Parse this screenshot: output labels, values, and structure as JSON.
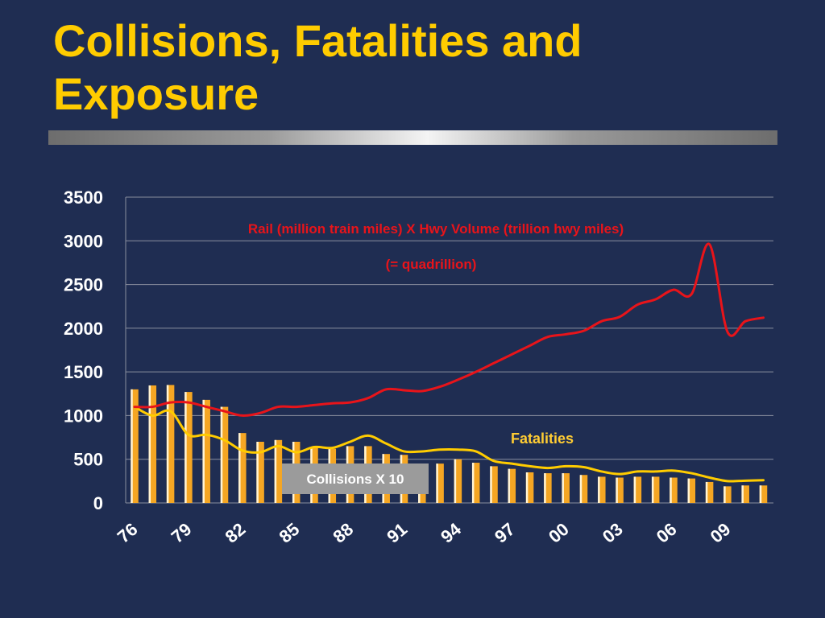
{
  "slide": {
    "title": "Collisions, Fatalities and Exposure"
  },
  "chart_data": {
    "type": "bar",
    "xlabel": "",
    "ylabel": "",
    "ylim": [
      0,
      3500
    ],
    "yticks": [
      0,
      500,
      1000,
      1500,
      2000,
      2500,
      3000,
      3500
    ],
    "grid": true,
    "categories": [
      "76",
      "77",
      "78",
      "79",
      "80",
      "81",
      "82",
      "83",
      "84",
      "85",
      "86",
      "87",
      "88",
      "89",
      "90",
      "91",
      "92",
      "93",
      "94",
      "95",
      "96",
      "97",
      "98",
      "99",
      "00",
      "01",
      "02",
      "03",
      "04",
      "05",
      "06",
      "07",
      "08",
      "09",
      "10",
      "11"
    ],
    "x_tick_labels": [
      "76",
      "79",
      "82",
      "85",
      "88",
      "91",
      "94",
      "97",
      "00",
      "03",
      "06",
      "09"
    ],
    "series": [
      {
        "name": "Collisions X 10",
        "kind": "bar",
        "color": "#f5a623",
        "values": [
          1300,
          1345,
          1350,
          1270,
          1180,
          1100,
          800,
          700,
          720,
          700,
          640,
          620,
          650,
          650,
          560,
          550,
          450,
          450,
          500,
          460,
          420,
          390,
          350,
          340,
          340,
          320,
          300,
          290,
          300,
          300,
          290,
          280,
          240,
          190,
          200,
          200
        ]
      },
      {
        "name": "Fatalities",
        "kind": "line",
        "color": "#ffcc00",
        "values": [
          1100,
          1000,
          1050,
          780,
          780,
          720,
          600,
          580,
          650,
          580,
          640,
          630,
          700,
          770,
          680,
          590,
          590,
          610,
          610,
          590,
          480,
          450,
          420,
          400,
          420,
          410,
          360,
          330,
          360,
          360,
          370,
          340,
          290,
          250,
          255,
          260
        ]
      },
      {
        "name": "Rail (million train miles) X Hwy Volume (trillion hwy miles)",
        "kind": "line",
        "color": "#e8141a",
        "values": [
          1100,
          1100,
          1150,
          1150,
          1100,
          1050,
          1000,
          1030,
          1100,
          1100,
          1120,
          1140,
          1150,
          1200,
          1300,
          1290,
          1280,
          1330,
          1410,
          1500,
          1600,
          1700,
          1800,
          1900,
          1930,
          1970,
          2080,
          2130,
          2270,
          2330,
          2440,
          2390,
          2960,
          1960,
          2080,
          2120
        ]
      }
    ],
    "annotations": {
      "rail_line1": "Rail (million train miles) X Hwy Volume (trillion hwy miles)",
      "rail_line2": "(= quadrillion)",
      "fatalities": "Fatalities",
      "collisions": "Collisions X 10"
    }
  }
}
